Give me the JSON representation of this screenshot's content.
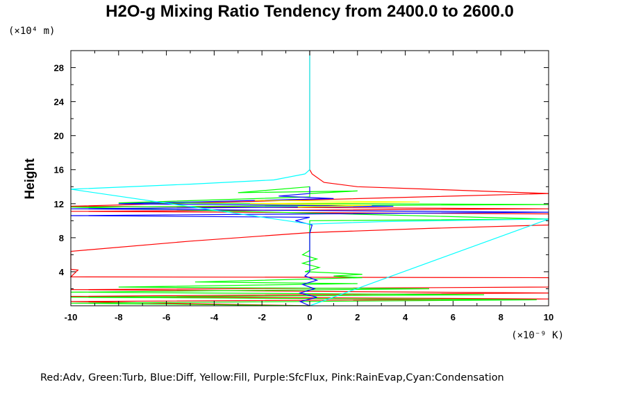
{
  "chart_data": {
    "type": "line",
    "title": "H2O-g Mixing Ratio Tendency from 2400.0 to 2600.0",
    "ylabel": "Height",
    "y_unit": "(×10⁴ m)",
    "x_unit": "(×10⁻⁹ K)",
    "xlim": [
      -10,
      10
    ],
    "ylim": [
      0,
      30
    ],
    "xticks": [
      -10,
      -8,
      -6,
      -4,
      -2,
      0,
      2,
      4,
      6,
      8,
      10
    ],
    "yticks": [
      4,
      8,
      12,
      16,
      20,
      24,
      28
    ],
    "grid": false,
    "legend_text": "Red:Adv, Green:Turb, Blue:Diff, Yellow:Fill, Purple:SfcFlux, Pink:RainEvap,Cyan:Condensation",
    "series": [
      {
        "name": "Adv",
        "color": "#ff0000",
        "points": [
          [
            0,
            30
          ],
          [
            0,
            16
          ],
          [
            0.1,
            15.5
          ],
          [
            0.6,
            14.5
          ],
          [
            2,
            14
          ],
          [
            5,
            13.7
          ],
          [
            10,
            13.2
          ],
          [
            10,
            13.2
          ],
          [
            -10,
            11.7
          ],
          [
            10,
            11.4
          ],
          [
            -10,
            11.1
          ],
          [
            10,
            10.8
          ],
          [
            10,
            9.5
          ],
          [
            5,
            9.1
          ],
          [
            0,
            8.6
          ],
          [
            -5,
            7.6
          ],
          [
            -10,
            6.4
          ],
          [
            -10,
            4.3
          ],
          [
            -9.7,
            4.2
          ],
          [
            -10,
            3.4
          ],
          [
            10,
            3.3
          ],
          [
            10,
            2.2
          ],
          [
            -10,
            1.9
          ],
          [
            10,
            1.5
          ],
          [
            -10,
            1.1
          ],
          [
            10,
            0.8
          ],
          [
            -10,
            0.5
          ],
          [
            0,
            0
          ]
        ]
      },
      {
        "name": "Turb",
        "color": "#00ff00",
        "points": [
          [
            0,
            14
          ],
          [
            -3,
            13.3
          ],
          [
            2,
            13.5
          ],
          [
            0,
            13.2
          ],
          [
            0,
            12.8
          ],
          [
            -8,
            12.1
          ],
          [
            10,
            11.9
          ],
          [
            -10,
            11.6
          ],
          [
            10,
            10.2
          ],
          [
            0,
            10
          ],
          [
            0,
            6.5
          ],
          [
            -0.3,
            6
          ],
          [
            0.3,
            5.5
          ],
          [
            -0.3,
            5
          ],
          [
            0.4,
            4.5
          ],
          [
            -0.2,
            4
          ],
          [
            1.5,
            3.8
          ],
          [
            2.2,
            3.7
          ],
          [
            1,
            3.5
          ],
          [
            2.2,
            3.3
          ],
          [
            -4.8,
            2.8
          ],
          [
            2,
            2.6
          ],
          [
            -8,
            2.2
          ],
          [
            5,
            2
          ],
          [
            -10,
            1.6
          ],
          [
            7.3,
            1.3
          ],
          [
            -10,
            1
          ],
          [
            9.5,
            0.7
          ],
          [
            -10,
            0.3
          ],
          [
            0,
            0
          ]
        ]
      },
      {
        "name": "Diff",
        "color": "#0000ff",
        "points": [
          [
            0,
            14
          ],
          [
            0,
            13.2
          ],
          [
            -1.3,
            12.9
          ],
          [
            1,
            12.6
          ],
          [
            -8,
            12
          ],
          [
            3.5,
            11.7
          ],
          [
            -10,
            11.4
          ],
          [
            10,
            11
          ],
          [
            -10,
            10.6
          ],
          [
            0,
            10.4
          ],
          [
            -0.6,
            10
          ],
          [
            0.1,
            9.5
          ],
          [
            0,
            8.5
          ],
          [
            0,
            4
          ],
          [
            -0.2,
            3.5
          ],
          [
            0.3,
            3
          ],
          [
            -0.3,
            2.5
          ],
          [
            0.2,
            2
          ],
          [
            -0.4,
            1.5
          ],
          [
            0.3,
            1
          ],
          [
            -0.4,
            0.5
          ],
          [
            0,
            0
          ]
        ]
      },
      {
        "name": "Fill",
        "color": "#ffff00",
        "points": [
          [
            -2.3,
            12.4
          ],
          [
            4.6,
            12.2
          ],
          [
            -2.5,
            12
          ],
          [
            2.6,
            11.8
          ],
          [
            -0.5,
            11.6
          ]
        ]
      },
      {
        "name": "SfcFlux",
        "color": "#800080",
        "points": []
      },
      {
        "name": "RainEvap",
        "color": "#ff69b4",
        "points": []
      },
      {
        "name": "Condensation",
        "color": "#00ffff",
        "points": [
          [
            0,
            30
          ],
          [
            0,
            16
          ],
          [
            -0.2,
            15.5
          ],
          [
            -1.5,
            14.8
          ],
          [
            -5,
            14.3
          ],
          [
            -10,
            13.7
          ],
          [
            0,
            9.6
          ],
          [
            3,
            9.9
          ],
          [
            10,
            10.2
          ],
          [
            0,
            0
          ]
        ]
      }
    ]
  }
}
